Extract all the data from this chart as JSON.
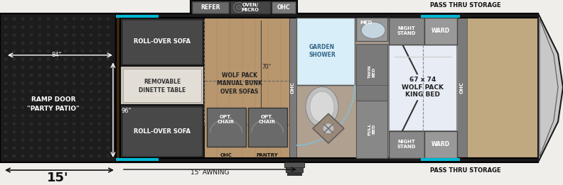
{
  "bg_color": "#f0eeeb",
  "dark_bg": "#1c1c1c",
  "floor_color": "#b8966e",
  "wall_dark": "#1a1a1a",
  "wall_brown": "#3a2810",
  "sofa_dark": "#2a2a2a",
  "sofa_mid": "#484848",
  "dinette_light": "#ccc5b8",
  "dinette_inner": "#e2ddd5",
  "gray_dark": "#555555",
  "gray_med": "#777777",
  "gray_light": "#aaaaaa",
  "shower_blue": "#b8d8e8",
  "shower_white": "#d8eef8",
  "bed_white": "#e8ecf4",
  "cyan_accent": "#00b8d4",
  "night_stand_gray": "#888888",
  "ward_gray": "#999999",
  "ohc_gray": "#7a7a7a",
  "chair_gray": "#6a6a6a",
  "refer_gray": "#686868",
  "oven_gear": "#555555",
  "nose_fill": "#c8c8c8",
  "pass_thru_text": "PASS THRU STORAGE",
  "ramp_door_text1": "RAMP DOOR",
  "ramp_door_text2": "\"PARTY PATIO\"",
  "dim_84": "84\"",
  "dim_96": "96\"",
  "dim_15ft": "15'",
  "dim_15awning": "15' AWNING",
  "dim_70": "70\"",
  "sofa_top_text": "ROLL-OVER SOFA",
  "sofa_bot_text": "ROLL-OVER SOFA",
  "dinette_text1": "REMOVABLE",
  "dinette_text2": "DINETTE TABLE",
  "wolfpack_text1": "WOLF PACK",
  "wolfpack_text2": "MANUAL BUNK",
  "wolfpack_text3": "OVER SOFAS",
  "opt_chair1": "OPT.\nCHAIR",
  "opt_chair2": "OPT.\nCHAIR",
  "ohc_left": "OHC",
  "pantry_text": "PANTRY",
  "refer_text": "REFER",
  "oven_text": "OVEN/\nMICRO",
  "ohc_top_text": "OHC",
  "garden_shower_text": "GARDEN\nSHOWER",
  "med_text": "MED",
  "ohc_mid_text": "OHC",
  "bed_text": "67 x 74\nWOLF PACK\nKING BED",
  "night_stand_text": "NIGHT\nSTAND",
  "ward_text": "WARD",
  "ohc_right_text": "OHC",
  "twin_bed_text": "TWIN\nBED",
  "full_bed_text": "FULL\nBED"
}
